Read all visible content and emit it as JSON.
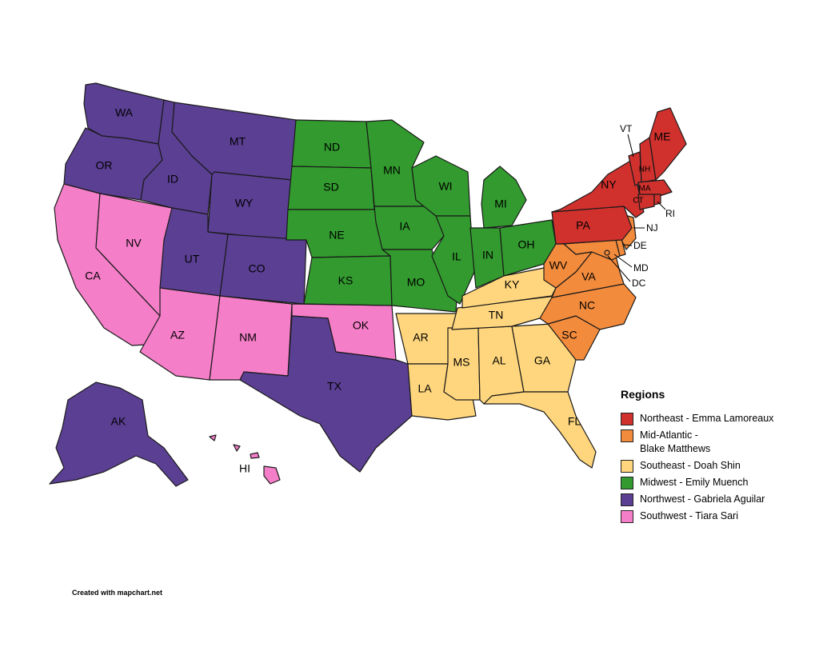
{
  "regions": {
    "northeast": {
      "label": "Northeast - Emma Lamoreaux",
      "color": "#d0312d"
    },
    "midatlantic": {
      "label": "Mid-Atlantic - Blake Matthews",
      "color": "#f38b3c"
    },
    "southeast": {
      "label": "Southeast - Doah Shin",
      "color": "#ffd67d"
    },
    "midwest": {
      "label": "Midwest - Emily Muench",
      "color": "#329a2e"
    },
    "northwest": {
      "label": "Northwest - Gabriela Aguilar",
      "color": "#5b3f93"
    },
    "southwest": {
      "label": "Southwest - Tiara Sari",
      "color": "#f57ec8"
    }
  },
  "legend": {
    "title": "Regions",
    "order": [
      "northeast",
      "midatlantic",
      "southeast",
      "midwest",
      "northwest",
      "southwest"
    ]
  },
  "states": [
    {
      "code": "WA",
      "region": "northwest"
    },
    {
      "code": "OR",
      "region": "northwest"
    },
    {
      "code": "CA",
      "region": "southwest"
    },
    {
      "code": "NV",
      "region": "southwest"
    },
    {
      "code": "ID",
      "region": "northwest"
    },
    {
      "code": "MT",
      "region": "northwest"
    },
    {
      "code": "WY",
      "region": "northwest"
    },
    {
      "code": "UT",
      "region": "northwest"
    },
    {
      "code": "CO",
      "region": "northwest"
    },
    {
      "code": "AZ",
      "region": "southwest"
    },
    {
      "code": "NM",
      "region": "southwest"
    },
    {
      "code": "OK",
      "region": "southwest"
    },
    {
      "code": "TX",
      "region": "northwest"
    },
    {
      "code": "ND",
      "region": "midwest"
    },
    {
      "code": "SD",
      "region": "midwest"
    },
    {
      "code": "NE",
      "region": "midwest"
    },
    {
      "code": "KS",
      "region": "midwest"
    },
    {
      "code": "MN",
      "region": "midwest"
    },
    {
      "code": "IA",
      "region": "midwest"
    },
    {
      "code": "MO",
      "region": "midwest"
    },
    {
      "code": "WI",
      "region": "midwest"
    },
    {
      "code": "IL",
      "region": "midwest"
    },
    {
      "code": "MI",
      "region": "midwest"
    },
    {
      "code": "IN",
      "region": "midwest"
    },
    {
      "code": "OH",
      "region": "midwest"
    },
    {
      "code": "AR",
      "region": "southeast"
    },
    {
      "code": "LA",
      "region": "southeast"
    },
    {
      "code": "MS",
      "region": "southeast"
    },
    {
      "code": "AL",
      "region": "southeast"
    },
    {
      "code": "GA",
      "region": "southeast"
    },
    {
      "code": "FL",
      "region": "southeast"
    },
    {
      "code": "TN",
      "region": "southeast"
    },
    {
      "code": "KY",
      "region": "southeast"
    },
    {
      "code": "SC",
      "region": "midatlantic"
    },
    {
      "code": "NC",
      "region": "midatlantic"
    },
    {
      "code": "VA",
      "region": "midatlantic"
    },
    {
      "code": "WV",
      "region": "midatlantic"
    },
    {
      "code": "MD",
      "region": "midatlantic"
    },
    {
      "code": "DE",
      "region": "midatlantic"
    },
    {
      "code": "NJ",
      "region": "midatlantic"
    },
    {
      "code": "DC",
      "region": "midatlantic"
    },
    {
      "code": "PA",
      "region": "northeast"
    },
    {
      "code": "NY",
      "region": "northeast"
    },
    {
      "code": "VT",
      "region": "northeast"
    },
    {
      "code": "NH",
      "region": "northeast"
    },
    {
      "code": "ME",
      "region": "northeast"
    },
    {
      "code": "MA",
      "region": "northeast"
    },
    {
      "code": "CT",
      "region": "northeast"
    },
    {
      "code": "RI",
      "region": "northeast"
    },
    {
      "code": "AK",
      "region": "northwest"
    },
    {
      "code": "HI",
      "region": "southwest"
    }
  ],
  "credit": "Created with mapchart.net"
}
